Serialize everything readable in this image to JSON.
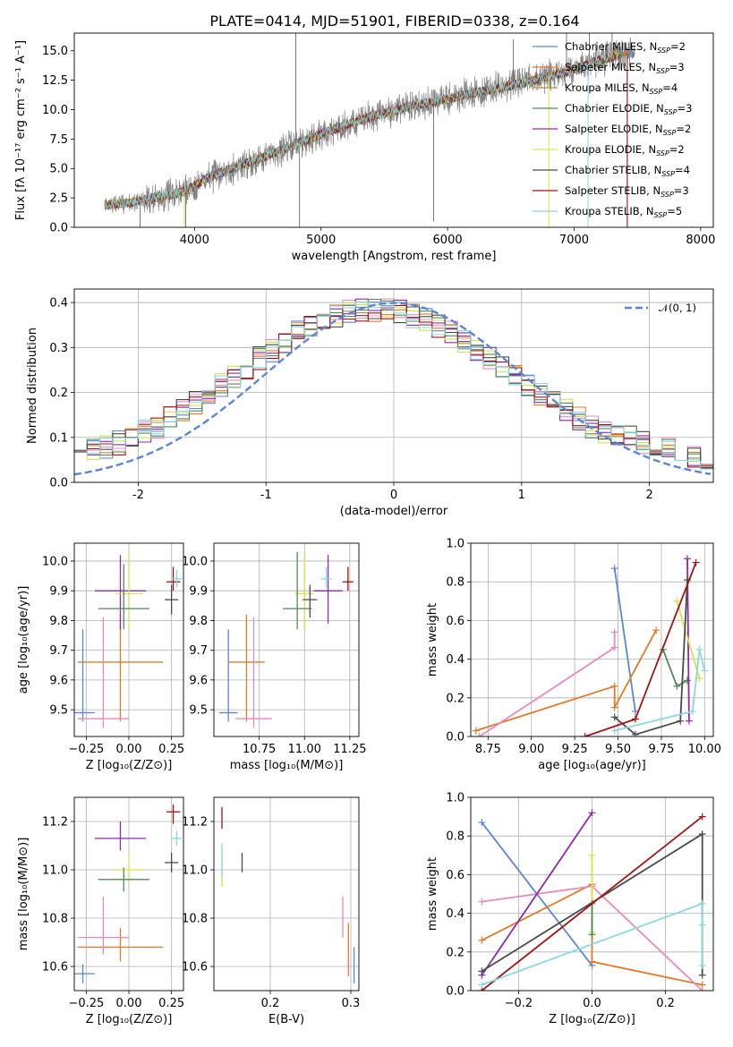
{
  "figure": {
    "title": "PLATE=0414, MJD=51901, FIBERID=0338, z=0.164"
  },
  "colors": {
    "Chabrier MILES": "#5b86d6",
    "Salpeter MILES": "#e07b2a",
    "Kroupa MILES": "#b58a28",
    "Chabrier ELODIE": "#4f8a5a",
    "Salpeter ELODIE": "#8e2aa6",
    "Kroupa ELODIE": "#d7e34a",
    "Chabrier STELIB": "#4a4a4a",
    "Salpeter STELIB": "#a01515",
    "Kroupa STELIB": "#8ad8e0",
    "pink": "#e889c0",
    "data": "#808080",
    "normal": "#5b86d6"
  },
  "chart_data": [
    {
      "id": "spectrum",
      "type": "line",
      "xlabel": "wavelength [Angstrom, rest frame]",
      "ylabel": "Flux [fλ 10⁻¹⁷ erg cm⁻² s⁻¹ A⁻¹]",
      "xlim": [
        3050,
        8100
      ],
      "ylim": [
        0,
        16.5
      ],
      "xticks": [
        4000,
        5000,
        6000,
        7000,
        8000
      ],
      "yticks": [
        0.0,
        2.5,
        5.0,
        7.5,
        10.0,
        12.5,
        15.0
      ],
      "legend_position": "top-right",
      "legend": [
        {
          "name": "Chabrier MILES, N_SSP=2",
          "label": "Chabrier MILES, N",
          "sub": "SSP",
          "tail": "=2",
          "color": "#5b86d6"
        },
        {
          "name": "Salpeter MILES, N_SSP=3",
          "label": "Salpeter MILES, N",
          "sub": "SSP",
          "tail": "=3",
          "color": "#e07b2a"
        },
        {
          "name": "Kroupa MILES, N_SSP=4",
          "label": "Kroupa MILES, N",
          "sub": "SSP",
          "tail": "=4",
          "color": "#b58a28"
        },
        {
          "name": "Chabrier ELODIE, N_SSP=3",
          "label": "Chabrier ELODIE, N",
          "sub": "SSP",
          "tail": "=3",
          "color": "#4f8a5a"
        },
        {
          "name": "Salpeter ELODIE, N_SSP=2",
          "label": "Salpeter ELODIE, N",
          "sub": "SSP",
          "tail": "=2",
          "color": "#8e2aa6"
        },
        {
          "name": "Kroupa ELODIE, N_SSP=2",
          "label": "Kroupa ELODIE, N",
          "sub": "SSP",
          "tail": "=2",
          "color": "#d7e34a"
        },
        {
          "name": "Chabrier STELIB, N_SSP=4",
          "label": "Chabrier STELIB, N",
          "sub": "SSP",
          "tail": "=4",
          "color": "#4a4a4a"
        },
        {
          "name": "Salpeter STELIB, N_SSP=3",
          "label": "Salpeter STELIB, N",
          "sub": "SSP",
          "tail": "=3",
          "color": "#a01515"
        },
        {
          "name": "Kroupa STELIB, N_SSP=5",
          "label": "Kroupa STELIB, N",
          "sub": "SSP",
          "tail": "=5",
          "color": "#8ad8e0"
        }
      ],
      "continuum": [
        [
          3290,
          1.9
        ],
        [
          3500,
          2.1
        ],
        [
          3700,
          2.5
        ],
        [
          3900,
          3.0
        ],
        [
          4000,
          3.5
        ],
        [
          4100,
          4.2
        ],
        [
          4300,
          5.0
        ],
        [
          4500,
          5.8
        ],
        [
          4700,
          6.6
        ],
        [
          4860,
          7.3
        ],
        [
          5000,
          7.9
        ],
        [
          5200,
          8.7
        ],
        [
          5400,
          9.4
        ],
        [
          5600,
          10.0
        ],
        [
          5800,
          10.5
        ],
        [
          6000,
          10.9
        ],
        [
          6200,
          11.4
        ],
        [
          6400,
          11.8
        ],
        [
          6600,
          12.3
        ],
        [
          6800,
          12.8
        ],
        [
          7000,
          13.4
        ],
        [
          7200,
          14.2
        ],
        [
          7400,
          14.8
        ]
      ]
    },
    {
      "id": "residuals",
      "type": "line",
      "xlabel": "(data-model)/error",
      "ylabel": "Normed distribution",
      "xlim": [
        -2.5,
        2.5
      ],
      "ylim": [
        0,
        0.43
      ],
      "xticks": [
        -2,
        -1,
        0,
        1,
        2
      ],
      "yticks": [
        0.0,
        0.1,
        0.2,
        0.3,
        0.4
      ],
      "legend_position": "top-right",
      "legend": [
        {
          "name": "𝒩(0, 1)",
          "color": "#5b86d6"
        }
      ],
      "normal": {
        "mean": 0,
        "sigma": 1
      },
      "bin_width": 0.1
    },
    {
      "id": "z-age",
      "type": "scatter",
      "xlabel": "Z [log₁₀(Z/Z⊙)]",
      "ylabel": "age  [log₁₀(age/yr)]",
      "xlim": [
        -0.32,
        0.32
      ],
      "ylim": [
        9.41,
        10.06
      ],
      "xticks": [
        -0.25,
        0.0,
        0.25
      ],
      "xticklabels": [
        "−0.25",
        "0.00",
        "0.25"
      ],
      "yticks": [
        9.5,
        9.6,
        9.7,
        9.8,
        9.9,
        10.0
      ],
      "points": [
        {
          "x": -0.27,
          "y": 9.49,
          "xerr": 0.07,
          "yerr_lo": 0.03,
          "yerr_hi": 0.28,
          "color": "#5b86d6"
        },
        {
          "x": -0.05,
          "y": 9.66,
          "xerr": 0.25,
          "yerr_lo": 0.2,
          "yerr_hi": 0.16,
          "color": "#e07b2a"
        },
        {
          "x": -0.15,
          "y": 9.47,
          "xerr": 0.15,
          "yerr_lo": 0.03,
          "yerr_hi": 0.34,
          "color": "#e889c0"
        },
        {
          "x": -0.05,
          "y": 9.9,
          "xerr": 0.15,
          "yerr_lo": 0.13,
          "yerr_hi": 0.12,
          "color": "#8e2aa6"
        },
        {
          "x": 0.0,
          "y": 9.89,
          "xerr": 0.08,
          "yerr_lo": 0.12,
          "yerr_hi": 0.14,
          "color": "#d7e34a"
        },
        {
          "x": -0.03,
          "y": 9.84,
          "xerr": 0.15,
          "yerr_lo": 0.07,
          "yerr_hi": 0.15,
          "color": "#4f8a5a"
        },
        {
          "x": 0.25,
          "y": 9.87,
          "xerr": 0.04,
          "yerr_lo": 0.05,
          "yerr_hi": 0.05,
          "color": "#4a4a4a"
        },
        {
          "x": 0.26,
          "y": 9.93,
          "xerr": 0.04,
          "yerr_lo": 0.03,
          "yerr_hi": 0.05,
          "color": "#a01515"
        },
        {
          "x": 0.28,
          "y": 9.94,
          "xerr": 0.03,
          "yerr_lo": 0.03,
          "yerr_hi": 0.03,
          "color": "#8ad8e0"
        }
      ]
    },
    {
      "id": "mass-age",
      "type": "scatter",
      "xlabel": "mass [log₁₀(M/M⊙)]",
      "ylabel": "",
      "xlim": [
        10.5,
        11.3
      ],
      "ylim": [
        9.41,
        10.06
      ],
      "xticks": [
        10.75,
        11.0,
        11.25
      ],
      "xticklabels": [
        "10.75",
        "11.00",
        "11.25"
      ],
      "yticks": [
        9.5,
        9.6,
        9.7,
        9.8,
        9.9,
        10.0
      ],
      "points": [
        {
          "x": 10.58,
          "y": 9.49,
          "xerr": 0.05,
          "yerr_lo": 0.03,
          "yerr_hi": 0.28,
          "color": "#5b86d6"
        },
        {
          "x": 10.68,
          "y": 9.66,
          "xerr": 0.1,
          "yerr_lo": 0.2,
          "yerr_hi": 0.16,
          "color": "#e07b2a"
        },
        {
          "x": 10.72,
          "y": 9.47,
          "xerr": 0.1,
          "yerr_lo": 0.03,
          "yerr_hi": 0.34,
          "color": "#e889c0"
        },
        {
          "x": 11.13,
          "y": 9.9,
          "xerr": 0.08,
          "yerr_lo": 0.11,
          "yerr_hi": 0.12,
          "color": "#8e2aa6"
        },
        {
          "x": 11.0,
          "y": 9.89,
          "xerr": 0.05,
          "yerr_lo": 0.12,
          "yerr_hi": 0.14,
          "color": "#d7e34a"
        },
        {
          "x": 10.96,
          "y": 9.84,
          "xerr": 0.08,
          "yerr_lo": 0.07,
          "yerr_hi": 0.19,
          "color": "#4f8a5a"
        },
        {
          "x": 11.03,
          "y": 9.87,
          "xerr": 0.04,
          "yerr_lo": 0.06,
          "yerr_hi": 0.05,
          "color": "#4a4a4a"
        },
        {
          "x": 11.24,
          "y": 9.93,
          "xerr": 0.03,
          "yerr_lo": 0.03,
          "yerr_hi": 0.05,
          "color": "#a01515"
        },
        {
          "x": 11.12,
          "y": 9.94,
          "xerr": 0.03,
          "yerr_lo": 0.03,
          "yerr_hi": 0.04,
          "color": "#8ad8e0"
        }
      ]
    },
    {
      "id": "age-weight",
      "type": "line",
      "xlabel": "age  [log₁₀(age/yr)]",
      "ylabel": "mass weight",
      "xlim": [
        8.65,
        10.05
      ],
      "ylim": [
        0,
        1.0
      ],
      "xticks": [
        8.75,
        9.0,
        9.25,
        9.5,
        9.75,
        10.0
      ],
      "xticklabels": [
        "8.75",
        "9.00",
        "9.25",
        "9.50",
        "9.75",
        "10.00"
      ],
      "yticks": [
        0.0,
        0.2,
        0.4,
        0.6,
        0.8,
        1.0
      ],
      "series": [
        {
          "color": "#5b86d6",
          "points": [
            [
              9.48,
              0.87
            ],
            [
              9.6,
              0.13
            ]
          ]
        },
        {
          "color": "#e07b2a",
          "points": [
            [
              8.68,
              0.03
            ],
            [
              9.48,
              0.26
            ],
            [
              9.48,
              0.15
            ],
            [
              9.72,
              0.55
            ]
          ]
        },
        {
          "color": "#e889c0",
          "points": [
            [
              8.7,
              0.0
            ],
            [
              9.48,
              0.46
            ],
            [
              9.48,
              0.54
            ]
          ]
        },
        {
          "color": "#4f8a5a",
          "points": [
            [
              9.76,
              0.45
            ],
            [
              9.84,
              0.26
            ],
            [
              9.9,
              0.29
            ]
          ]
        },
        {
          "color": "#8e2aa6",
          "points": [
            [
              9.9,
              0.92
            ],
            [
              9.91,
              0.08
            ]
          ]
        },
        {
          "color": "#d7e34a",
          "points": [
            [
              9.84,
              0.7
            ],
            [
              9.97,
              0.3
            ]
          ]
        },
        {
          "color": "#4a4a4a",
          "points": [
            [
              9.48,
              0.1
            ],
            [
              9.6,
              0.01
            ],
            [
              9.86,
              0.08
            ],
            [
              9.9,
              0.81
            ]
          ]
        },
        {
          "color": "#a01515",
          "points": [
            [
              9.31,
              0.0
            ],
            [
              9.6,
              0.09
            ],
            [
              9.95,
              0.9
            ]
          ]
        },
        {
          "color": "#8ad8e0",
          "points": [
            [
              9.48,
              0.03
            ],
            [
              9.93,
              0.13
            ],
            [
              9.97,
              0.45
            ],
            [
              10.0,
              0.34
            ]
          ]
        }
      ]
    },
    {
      "id": "z-mass",
      "type": "scatter",
      "xlabel": "Z [log₁₀(Z/Z⊙)]",
      "ylabel": "mass [log₁₀(M/M⊙)]",
      "xlim": [
        -0.32,
        0.32
      ],
      "ylim": [
        10.5,
        11.3
      ],
      "xticks": [
        -0.25,
        0.0,
        0.25
      ],
      "xticklabels": [
        "−0.25",
        "0.00",
        "0.25"
      ],
      "yticks": [
        10.6,
        10.8,
        11.0,
        11.2
      ],
      "points": [
        {
          "x": -0.27,
          "y": 10.57,
          "xerr": 0.07,
          "yerr_lo": 0.04,
          "yerr_hi": 0.04,
          "color": "#5b86d6"
        },
        {
          "x": -0.05,
          "y": 10.68,
          "xerr": 0.25,
          "yerr_lo": 0.06,
          "yerr_hi": 0.08,
          "color": "#e07b2a"
        },
        {
          "x": -0.15,
          "y": 10.72,
          "xerr": 0.15,
          "yerr_lo": 0.07,
          "yerr_hi": 0.17,
          "color": "#e889c0"
        },
        {
          "x": -0.05,
          "y": 11.13,
          "xerr": 0.15,
          "yerr_lo": 0.05,
          "yerr_hi": 0.07,
          "color": "#8e2aa6"
        },
        {
          "x": 0.0,
          "y": 11.0,
          "xerr": 0.1,
          "yerr_lo": 0.05,
          "yerr_hi": 0.07,
          "color": "#d7e34a"
        },
        {
          "x": -0.03,
          "y": 10.96,
          "xerr": 0.15,
          "yerr_lo": 0.05,
          "yerr_hi": 0.05,
          "color": "#4f8a5a"
        },
        {
          "x": 0.25,
          "y": 11.03,
          "xerr": 0.04,
          "yerr_lo": 0.04,
          "yerr_hi": 0.04,
          "color": "#4a4a4a"
        },
        {
          "x": 0.26,
          "y": 11.24,
          "xerr": 0.04,
          "yerr_lo": 0.05,
          "yerr_hi": 0.03,
          "color": "#a01515"
        },
        {
          "x": 0.28,
          "y": 11.13,
          "xerr": 0.03,
          "yerr_lo": 0.03,
          "yerr_hi": 0.03,
          "color": "#8ad8e0"
        }
      ]
    },
    {
      "id": "ebv-mass",
      "type": "scatter",
      "xlabel": "E(B-V)",
      "ylabel": "",
      "xlim": [
        0.13,
        0.31
      ],
      "ylim": [
        10.5,
        11.3
      ],
      "xticks": [
        0.2,
        0.3
      ],
      "xticklabels": [
        "0.2",
        "0.3"
      ],
      "yticks": [
        10.6,
        10.8,
        11.0,
        11.2
      ],
      "points": [
        {
          "x": 0.304,
          "y": 10.6,
          "xerr": 0.0,
          "yerr_lo": 0.07,
          "yerr_hi": 0.08,
          "color": "#5b86d6"
        },
        {
          "x": 0.297,
          "y": 10.68,
          "xerr": 0.0,
          "yerr_lo": 0.12,
          "yerr_hi": 0.1,
          "color": "#e07b2a"
        },
        {
          "x": 0.29,
          "y": 10.8,
          "xerr": 0.0,
          "yerr_lo": 0.08,
          "yerr_hi": 0.09,
          "color": "#e889c0"
        },
        {
          "x": 0.14,
          "y": 11.0,
          "xerr": 0.0,
          "yerr_lo": 0.07,
          "yerr_hi": 0.07,
          "color": "#d7e34a"
        },
        {
          "x": 0.14,
          "y": 11.05,
          "xerr": 0.0,
          "yerr_lo": 0.08,
          "yerr_hi": 0.06,
          "color": "#8ad8e0"
        },
        {
          "x": 0.14,
          "y": 11.2,
          "xerr": 0.0,
          "yerr_lo": 0.03,
          "yerr_hi": 0.06,
          "color": "#a01515"
        },
        {
          "x": 0.165,
          "y": 11.03,
          "xerr": 0.0,
          "yerr_lo": 0.04,
          "yerr_hi": 0.04,
          "color": "#4a4a4a"
        }
      ]
    },
    {
      "id": "z-weight",
      "type": "line",
      "xlabel": "Z [log₁₀(Z/Z⊙)]",
      "ylabel": "mass weight",
      "xlim": [
        -0.33,
        0.33
      ],
      "ylim": [
        0,
        1.0
      ],
      "xticks": [
        -0.2,
        0.0,
        0.2
      ],
      "xticklabels": [
        "−0.2",
        "0.0",
        "0.2"
      ],
      "yticks": [
        0.0,
        0.2,
        0.4,
        0.6,
        0.8,
        1.0
      ],
      "series": [
        {
          "color": "#5b86d6",
          "points": [
            [
              -0.3,
              0.87
            ],
            [
              0.0,
              0.13
            ]
          ]
        },
        {
          "color": "#e07b2a",
          "points": [
            [
              -0.3,
              0.26
            ],
            [
              0.0,
              0.55
            ],
            [
              0.0,
              0.15
            ],
            [
              0.3,
              0.03
            ]
          ]
        },
        {
          "color": "#e889c0",
          "points": [
            [
              -0.3,
              0.46
            ],
            [
              0.0,
              0.54
            ],
            [
              0.3,
              0.0
            ]
          ]
        },
        {
          "color": "#8e2aa6",
          "points": [
            [
              -0.3,
              0.08
            ],
            [
              0.0,
              0.92
            ]
          ]
        },
        {
          "color": "#d7e34a",
          "points": [
            [
              0.0,
              0.7
            ],
            [
              0.0,
              0.3
            ]
          ]
        },
        {
          "color": "#4f8a5a",
          "points": [
            [
              0.0,
              0.45
            ],
            [
              0.0,
              0.29
            ]
          ]
        },
        {
          "color": "#4a4a4a",
          "points": [
            [
              -0.3,
              0.1
            ],
            [
              0.3,
              0.81
            ],
            [
              0.3,
              0.08
            ]
          ]
        },
        {
          "color": "#a01515",
          "points": [
            [
              -0.3,
              0.0
            ],
            [
              0.3,
              0.9
            ]
          ]
        },
        {
          "color": "#8ad8e0",
          "points": [
            [
              -0.3,
              0.03
            ],
            [
              0.3,
              0.45
            ],
            [
              0.3,
              0.13
            ],
            [
              0.3,
              0.34
            ]
          ]
        }
      ]
    }
  ]
}
